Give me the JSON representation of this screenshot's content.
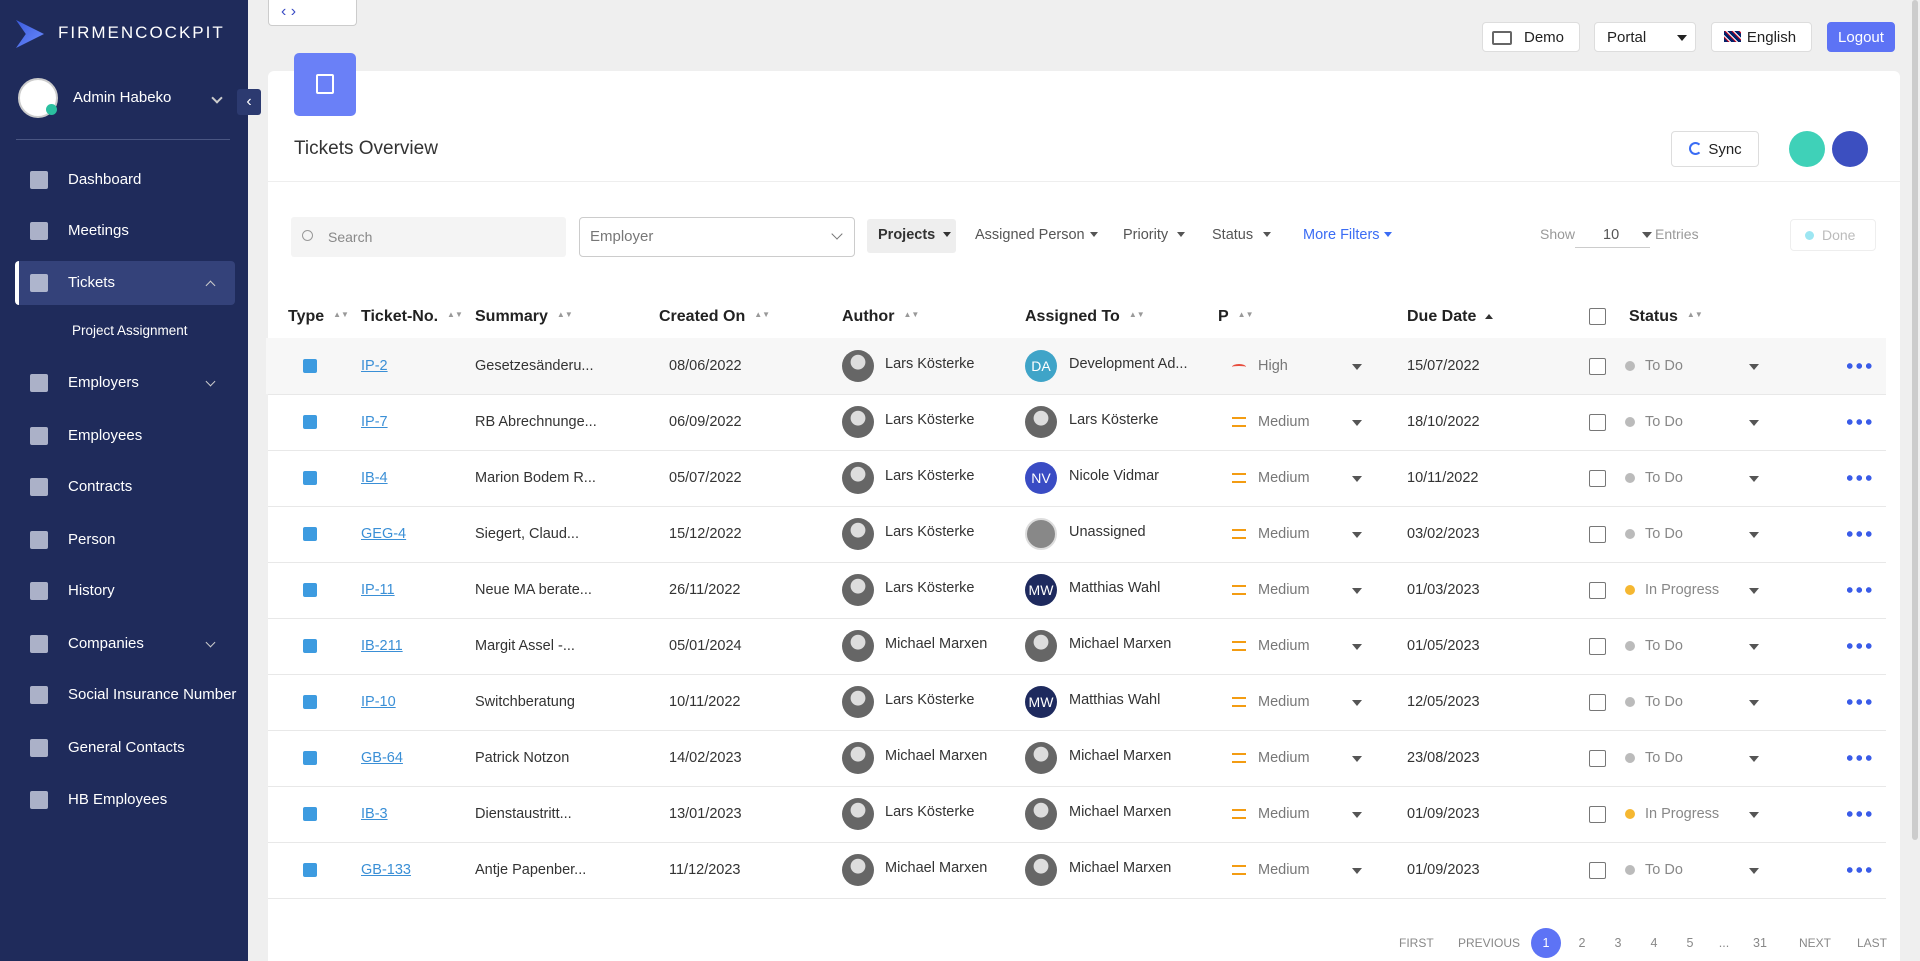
{
  "sidebar": {
    "brand": "FIRMENCOCKPIT",
    "user": "Admin Habeko",
    "nav": [
      {
        "label": "Dashboard"
      },
      {
        "label": "Meetings"
      },
      {
        "label": "Tickets",
        "active": true,
        "open": true
      },
      {
        "label": "Project Assignment",
        "sub": true
      },
      {
        "label": "Employers",
        "expandable": true
      },
      {
        "label": "Employees"
      },
      {
        "label": "Contracts"
      },
      {
        "label": "Person"
      },
      {
        "label": "History"
      },
      {
        "label": "Companies",
        "expandable": true
      },
      {
        "label": "Social Insurance Number"
      },
      {
        "label": "General Contacts"
      },
      {
        "label": "HB Employees"
      }
    ]
  },
  "topbar": {
    "demo": "Demo",
    "portal": "Portal",
    "language": "English",
    "logout": "Logout"
  },
  "page": {
    "title": "Tickets Overview",
    "sync": "Sync"
  },
  "filters": {
    "search": "Search",
    "employer": "Employer",
    "projects": "Projects",
    "assigned": "Assigned Person",
    "priority": "Priority",
    "status": "Status",
    "more": "More Filters",
    "show": "Show",
    "entries_count": "10",
    "entries": "Entries",
    "done": "Done"
  },
  "table": {
    "headers": [
      "Type",
      "Ticket-No.",
      "Summary",
      "Created On",
      "Author",
      "Assigned To",
      "P",
      "Due Date",
      "Status"
    ],
    "rows": [
      {
        "ticket": "IP-2",
        "summary": "Gesetzesänderu...",
        "created": "08/06/2022",
        "author": "Lars Kösterke",
        "assigned": "Development Ad...",
        "initials": "DA",
        "priority": "High",
        "due": "15/07/2022",
        "status": "To Do"
      },
      {
        "ticket": "IP-7",
        "summary": "RB Abrechnunge...",
        "created": "06/09/2022",
        "author": "Lars Kösterke",
        "assigned": "Lars Kösterke",
        "priority": "Medium",
        "due": "18/10/2022",
        "status": "To Do"
      },
      {
        "ticket": "IB-4",
        "summary": "Marion Bodem R...",
        "created": "05/07/2022",
        "author": "Lars Kösterke",
        "assigned": "Nicole Vidmar",
        "initials": "NV",
        "priority": "Medium",
        "due": "10/11/2022",
        "status": "To Do"
      },
      {
        "ticket": "GEG-4",
        "summary": "Siegert, Claud...",
        "created": "15/12/2022",
        "author": "Lars Kösterke",
        "assigned": "Unassigned",
        "priority": "Medium",
        "due": "03/02/2023",
        "status": "To Do"
      },
      {
        "ticket": "IP-11",
        "summary": "Neue MA berate...",
        "created": "26/11/2022",
        "author": "Lars Kösterke",
        "assigned": "Matthias Wahl",
        "initials": "MW",
        "priority": "Medium",
        "due": "01/03/2023",
        "status": "In Progress"
      },
      {
        "ticket": "IB-211",
        "summary": "Margit Assel -...",
        "created": "05/01/2024",
        "author": "Michael Marxen",
        "assigned": "Michael Marxen",
        "priority": "Medium",
        "due": "01/05/2023",
        "status": "To Do"
      },
      {
        "ticket": "IP-10",
        "summary": "Switchberatung",
        "created": "10/11/2022",
        "author": "Lars Kösterke",
        "assigned": "Matthias Wahl",
        "initials": "MW",
        "priority": "Medium",
        "due": "12/05/2023",
        "status": "To Do"
      },
      {
        "ticket": "GB-64",
        "summary": "Patrick Notzon",
        "created": "14/02/2023",
        "author": "Michael Marxen",
        "assigned": "Michael Marxen",
        "priority": "Medium",
        "due": "23/08/2023",
        "status": "To Do"
      },
      {
        "ticket": "IB-3",
        "summary": "Dienstaustritt...",
        "created": "13/01/2023",
        "author": "Lars Kösterke",
        "assigned": "Michael Marxen",
        "priority": "Medium",
        "due": "01/09/2023",
        "status": "In Progress"
      },
      {
        "ticket": "GB-133",
        "summary": "Antje Papenber...",
        "created": "11/12/2023",
        "author": "Michael Marxen",
        "assigned": "Michael Marxen",
        "priority": "Medium",
        "due": "01/09/2023",
        "status": "To Do"
      }
    ]
  },
  "pagination": {
    "first": "FIRST",
    "previous": "PREVIOUS",
    "pages": [
      "1",
      "2",
      "3",
      "4",
      "5",
      "...",
      "31"
    ],
    "next": "NEXT",
    "last": "LAST"
  }
}
